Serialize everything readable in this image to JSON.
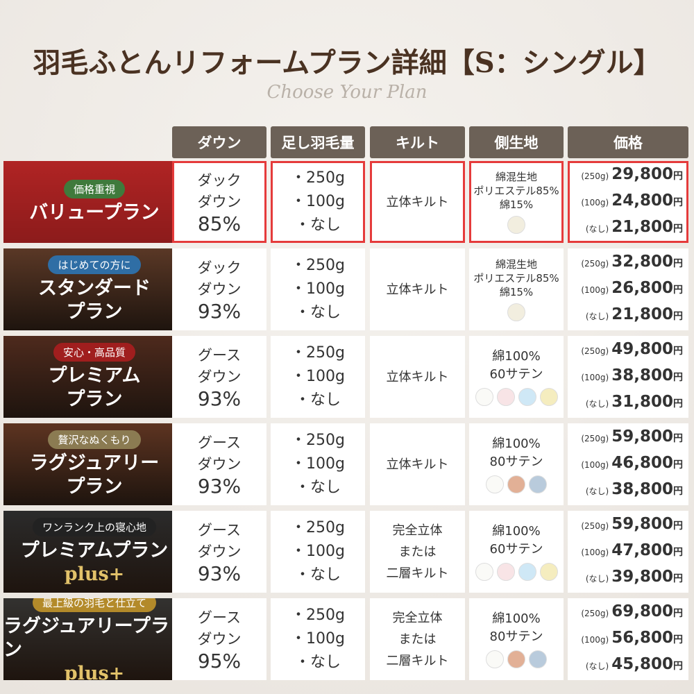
{
  "header": {
    "title": "羽毛ふとんリフォームプラン詳細【S：シングル】",
    "subtitle": "Choose Your Plan"
  },
  "table": {
    "columns": [
      "ダウン",
      "足し羽毛量",
      "キルト",
      "側生地",
      "価格"
    ],
    "currency": "円",
    "rows": [
      {
        "tag": "価格重視",
        "tag_color": "#3f7a3c",
        "panel_color": "#8c1b1b",
        "highlighted": true,
        "name": [
          "バリュープラン"
        ],
        "down": [
          "ダック",
          "ダウン",
          "85%"
        ],
        "amounts": [
          "・250g",
          "・100g",
          "・なし"
        ],
        "quilt": [
          "立体キルト"
        ],
        "fabric": [
          "綿混生地",
          "ポリエステル85%",
          "綿15%"
        ],
        "swatches": [
          "#f2eedf"
        ],
        "prices": [
          {
            "label": "(250g)",
            "price": "29,800"
          },
          {
            "label": "(100g)",
            "price": "24,800"
          },
          {
            "label": "(なし)",
            "price": "21,800"
          }
        ]
      },
      {
        "tag": "はじめての方に",
        "tag_color": "#2f6ea5",
        "panel_color": "#5a3826",
        "highlighted": false,
        "name": [
          "スタンダード",
          "プラン"
        ],
        "down": [
          "ダック",
          "ダウン",
          "93%"
        ],
        "amounts": [
          "・250g",
          "・100g",
          "・なし"
        ],
        "quilt": [
          "立体キルト"
        ],
        "fabric": [
          "綿混生地",
          "ポリエステル85%",
          "綿15%"
        ],
        "swatches": [
          "#f2eedf"
        ],
        "prices": [
          {
            "label": "(250g)",
            "price": "32,800"
          },
          {
            "label": "(100g)",
            "price": "26,800"
          },
          {
            "label": "(なし)",
            "price": "21,800"
          }
        ]
      },
      {
        "tag": "安心・高品質",
        "tag_color": "#a01e1e",
        "panel_color": "#4e2a1d",
        "highlighted": false,
        "name": [
          "プレミアム",
          "プラン"
        ],
        "down": [
          "グース",
          "ダウン",
          "93%"
        ],
        "amounts": [
          "・250g",
          "・100g",
          "・なし"
        ],
        "quilt": [
          "立体キルト"
        ],
        "fabric": [
          "綿100%",
          "60サテン"
        ],
        "swatches": [
          "#fafaf7",
          "#f8e4e6",
          "#cfe8f6",
          "#f5edbf"
        ],
        "prices": [
          {
            "label": "(250g)",
            "price": "49,800"
          },
          {
            "label": "(100g)",
            "price": "38,800"
          },
          {
            "label": "(なし)",
            "price": "31,800"
          }
        ]
      },
      {
        "tag": "贅沢なぬくもり",
        "tag_color": "#8b7b52",
        "panel_color": "#5d3421",
        "highlighted": false,
        "name": [
          "ラグジュアリー",
          "プラン"
        ],
        "down": [
          "グース",
          "ダウン",
          "93%"
        ],
        "amounts": [
          "・250g",
          "・100g",
          "・なし"
        ],
        "quilt": [
          "立体キルト"
        ],
        "fabric": [
          "綿100%",
          "80サテン"
        ],
        "swatches": [
          "#fafaf7",
          "#e2b096",
          "#b9cbdc"
        ],
        "prices": [
          {
            "label": "(250g)",
            "price": "59,800"
          },
          {
            "label": "(100g)",
            "price": "46,800"
          },
          {
            "label": "(なし)",
            "price": "38,800"
          }
        ]
      },
      {
        "tag": "ワンランク上の寝心地",
        "tag_color": "#222222",
        "panel_color": "#2b2b2b",
        "highlighted": false,
        "name": [
          "プレミアムプラン",
          "plus+"
        ],
        "down": [
          "グース",
          "ダウン",
          "93%"
        ],
        "amounts": [
          "・250g",
          "・100g",
          "・なし"
        ],
        "quilt": [
          "完全立体",
          "または",
          "二層キルト"
        ],
        "fabric": [
          "綿100%",
          "60サテン"
        ],
        "swatches": [
          "#fafaf7",
          "#f8e4e6",
          "#cfe8f6",
          "#f5edbf"
        ],
        "prices": [
          {
            "label": "(250g)",
            "price": "59,800"
          },
          {
            "label": "(100g)",
            "price": "47,800"
          },
          {
            "label": "(なし)",
            "price": "39,800"
          }
        ]
      },
      {
        "tag": "最上級の羽毛と仕立て",
        "tag_color": "#b38a2a",
        "panel_color": "#333230",
        "highlighted": false,
        "name": [
          "ラグジュアリープラン",
          "plus+"
        ],
        "down": [
          "グース",
          "ダウン",
          "95%"
        ],
        "amounts": [
          "・250g",
          "・100g",
          "・なし"
        ],
        "quilt": [
          "完全立体",
          "または",
          "二層キルト"
        ],
        "fabric": [
          "綿100%",
          "80サテン"
        ],
        "swatches": [
          "#fafaf7",
          "#e2b096",
          "#b9cbdc"
        ],
        "prices": [
          {
            "label": "(250g)",
            "price": "69,800"
          },
          {
            "label": "(100g)",
            "price": "56,800"
          },
          {
            "label": "(なし)",
            "price": "45,800"
          }
        ]
      }
    ]
  }
}
